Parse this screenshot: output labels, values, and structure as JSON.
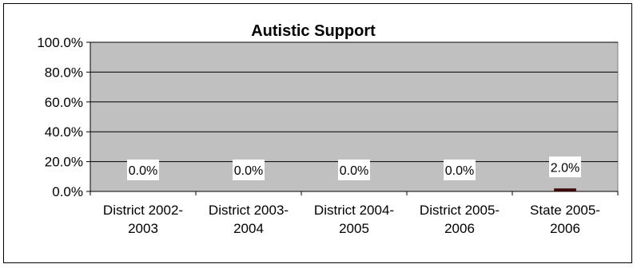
{
  "chart_data": {
    "type": "bar",
    "title": "Autistic Support",
    "xlabel": "",
    "ylabel": "",
    "categories": [
      [
        "District 2002-",
        "2003"
      ],
      [
        "District 2003-",
        "2004"
      ],
      [
        "District 2004-",
        "2005"
      ],
      [
        "District 2005-",
        "2006"
      ],
      [
        "State 2005-",
        "2006"
      ]
    ],
    "values": [
      0.0,
      0.0,
      0.0,
      0.0,
      2.0
    ],
    "data_labels": [
      "0.0%",
      "0.0%",
      "0.0%",
      "0.0%",
      "2.0%"
    ],
    "ylim": [
      0,
      100
    ],
    "yticks": [
      0,
      20,
      40,
      60,
      80,
      100
    ],
    "ytick_labels": [
      "0.0%",
      "20.0%",
      "40.0%",
      "60.0%",
      "80.0%",
      "100.0%"
    ],
    "grid": true,
    "legend": "none",
    "colors": {
      "plot_background": "#c0c0c0",
      "bar": "#3d0a0a",
      "gridline": "#000000"
    }
  }
}
